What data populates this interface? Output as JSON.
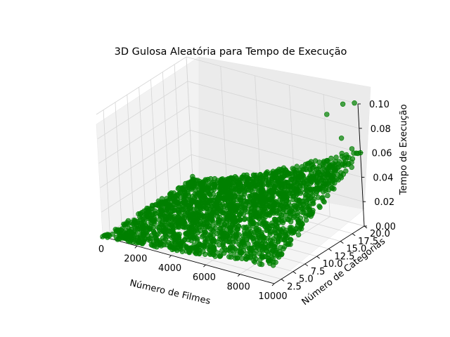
{
  "chart_data": {
    "type": "scatter",
    "projection": "3d",
    "title": "3D Gulosa Aleatória para Tempo de Execução",
    "xlabel": "Número de Filmes",
    "ylabel": "Número de Categorias",
    "zlabel": "Tempo de Execução",
    "xlim": [
      0,
      10000
    ],
    "ylim": [
      1,
      20
    ],
    "zlim": [
      0,
      0.1
    ],
    "x_ticks": [
      "0",
      "2000",
      "4000",
      "6000",
      "8000",
      "10000"
    ],
    "y_ticks": [
      "2.5",
      "5.0",
      "7.5",
      "10.0",
      "12.5",
      "15.0",
      "17.5",
      "20.0"
    ],
    "z_ticks": [
      "0.00",
      "0.02",
      "0.04",
      "0.06",
      "0.08",
      "0.10"
    ],
    "grid": true,
    "marker_color": "#008000",
    "marker_alpha": 0.7,
    "series": [
      {
        "description": "dense cloud: runtime grows with both films and categories (~0.06 max at 10000 films, 20 categories)",
        "points": [
          [
            0,
            1,
            0.0
          ],
          [
            10000,
            1,
            0.015
          ],
          [
            0,
            20,
            0.002
          ],
          [
            10000,
            20,
            0.06
          ],
          [
            5000,
            10,
            0.02
          ],
          [
            8000,
            15,
            0.04
          ],
          [
            3000,
            5,
            0.006
          ]
        ]
      },
      {
        "description": "outliers",
        "points": [
          [
            9000,
            17,
            0.095
          ],
          [
            9400,
            19,
            0.1
          ],
          [
            9800,
            20,
            0.1
          ],
          [
            9500,
            18,
            0.075
          ],
          [
            9800,
            19,
            0.065
          ],
          [
            9200,
            16,
            0.052
          ],
          [
            8200,
            14,
            0.05
          ]
        ]
      }
    ]
  }
}
